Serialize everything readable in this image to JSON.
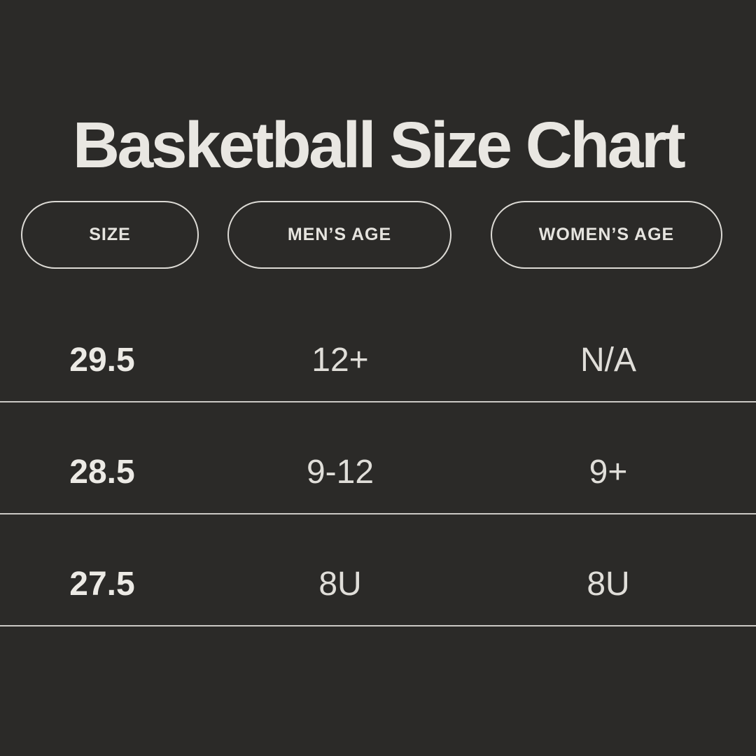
{
  "colors": {
    "background": "#2b2a28",
    "title_text": "#e9e7e2",
    "value_text": "#e0ded9",
    "divider": "#cbc9c5",
    "pill_border": "#dcdad5"
  },
  "title": "Basketball Size Chart",
  "columns": [
    {
      "label": "SIZE"
    },
    {
      "label": "MEN’S AGE"
    },
    {
      "label": "WOMEN’S AGE"
    }
  ],
  "rows": [
    {
      "size": "29.5",
      "mens_age": "12+",
      "womens_age": "N/A"
    },
    {
      "size": "28.5",
      "mens_age": "9-12",
      "womens_age": "9+"
    },
    {
      "size": "27.5",
      "mens_age": "8U",
      "womens_age": "8U"
    }
  ],
  "chart_data": {
    "type": "table",
    "title": "Basketball Size Chart",
    "columns": [
      "Size",
      "Men’s Age",
      "Women’s Age"
    ],
    "rows": [
      [
        "29.5",
        "12+",
        "N/A"
      ],
      [
        "28.5",
        "9-12",
        "9+"
      ],
      [
        "27.5",
        "8U",
        "8U"
      ]
    ]
  }
}
